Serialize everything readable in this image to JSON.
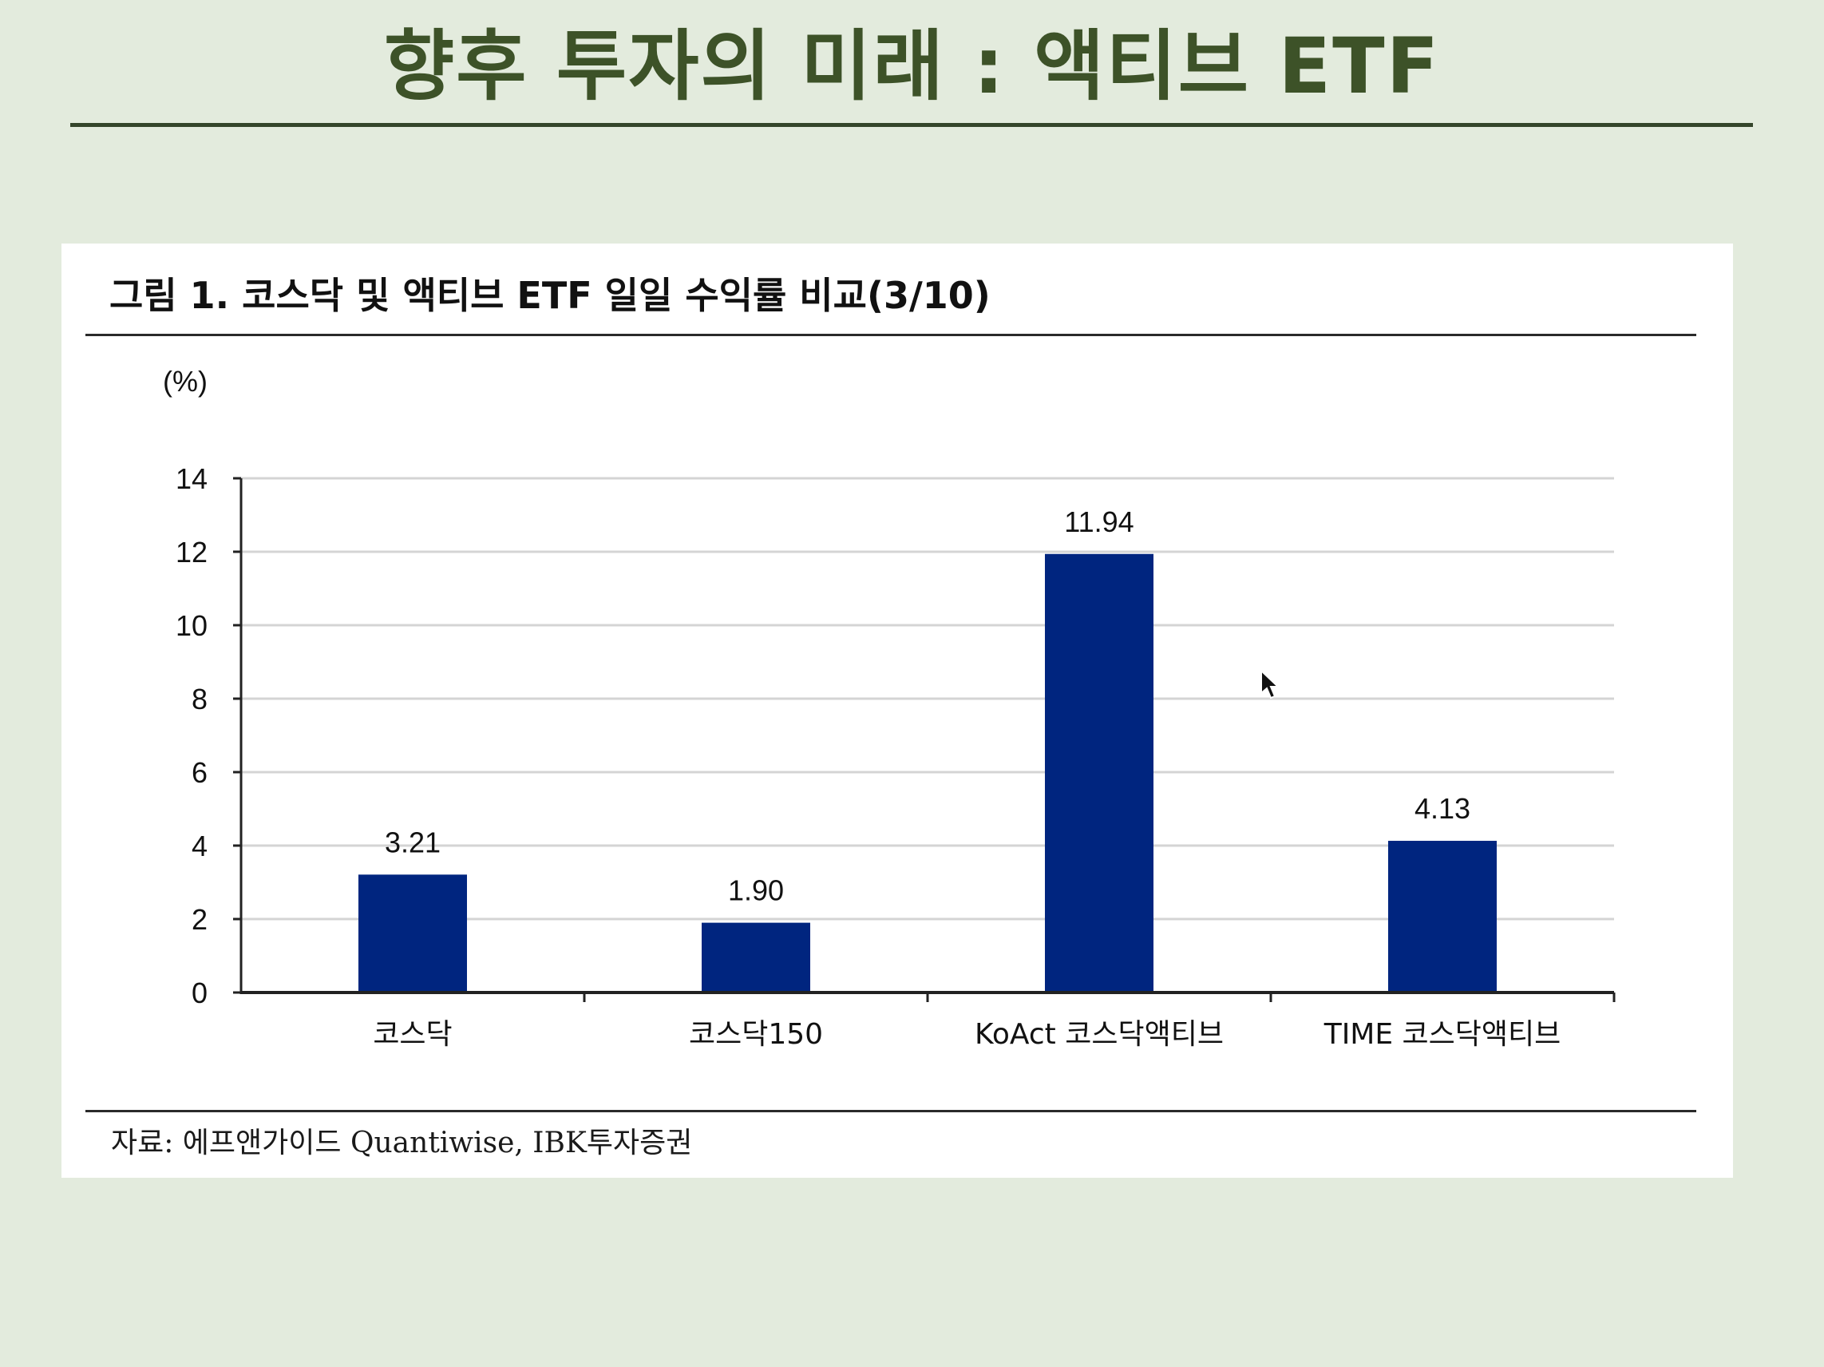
{
  "slide": {
    "title": "향후 투자의 미래 : 액티브 ETF"
  },
  "figure": {
    "title": "그림 1. 코스닥 및 액티브 ETF 일일 수익률 비교(3/10)",
    "source": "자료: 에프앤가이드 Quantiwise, IBK투자증권"
  },
  "chart_data": {
    "type": "bar",
    "title": "그림 1. 코스닥 및 액티브 ETF 일일 수익률 비교(3/10)",
    "unit_label": "(%)",
    "categories": [
      "코스닥",
      "코스닥150",
      "KoAct 코스닥액티브",
      "TIME 코스닥액티브"
    ],
    "values": [
      3.21,
      1.9,
      11.94,
      4.13
    ],
    "data_labels": [
      "3.21",
      "1.90",
      "11.94",
      "4.13"
    ],
    "ylim": [
      0,
      14
    ],
    "yticks": [
      0,
      2,
      4,
      6,
      8,
      10,
      12,
      14
    ],
    "grid": true,
    "legend": "none",
    "bar_color": "#00257f"
  },
  "colors": {
    "background": "#e3ebdd",
    "title_text": "#3d5228",
    "bar": "#00257f",
    "grid": "#d4d4d4"
  }
}
